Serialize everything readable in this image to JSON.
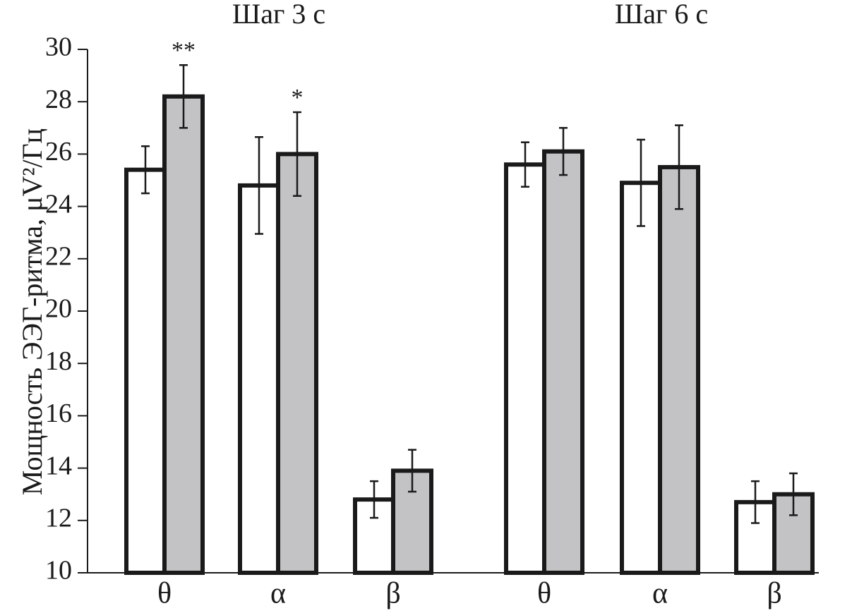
{
  "chart_data": {
    "type": "bar",
    "ylabel": "Мощность ЭЭГ-ритма, μV²/Гц",
    "ylim": [
      10,
      30
    ],
    "yticks": [
      10,
      12,
      14,
      16,
      18,
      20,
      22,
      24,
      26,
      28,
      30
    ],
    "grid": false,
    "groups": [
      {
        "title": "Шаг 3 с",
        "categories": [
          "θ",
          "α",
          "β"
        ],
        "series": [
          {
            "fill": "#ffffff",
            "values": [
              25.4,
              24.8,
              12.8
            ],
            "errors": [
              0.9,
              1.85,
              0.7
            ]
          },
          {
            "fill": "#c3c3c5",
            "values": [
              28.2,
              26.0,
              13.9
            ],
            "errors": [
              1.2,
              1.6,
              0.8
            ]
          }
        ],
        "annotations": [
          "**",
          "*",
          ""
        ]
      },
      {
        "title": "Шаг 6 с",
        "categories": [
          "θ",
          "α",
          "β"
        ],
        "series": [
          {
            "fill": "#ffffff",
            "values": [
              25.6,
              24.9,
              12.7
            ],
            "errors": [
              0.85,
              1.65,
              0.8
            ]
          },
          {
            "fill": "#c3c3c5",
            "values": [
              26.1,
              25.5,
              13.0
            ],
            "errors": [
              0.9,
              1.6,
              0.8
            ]
          }
        ],
        "annotations": [
          "",
          "",
          ""
        ]
      }
    ]
  }
}
